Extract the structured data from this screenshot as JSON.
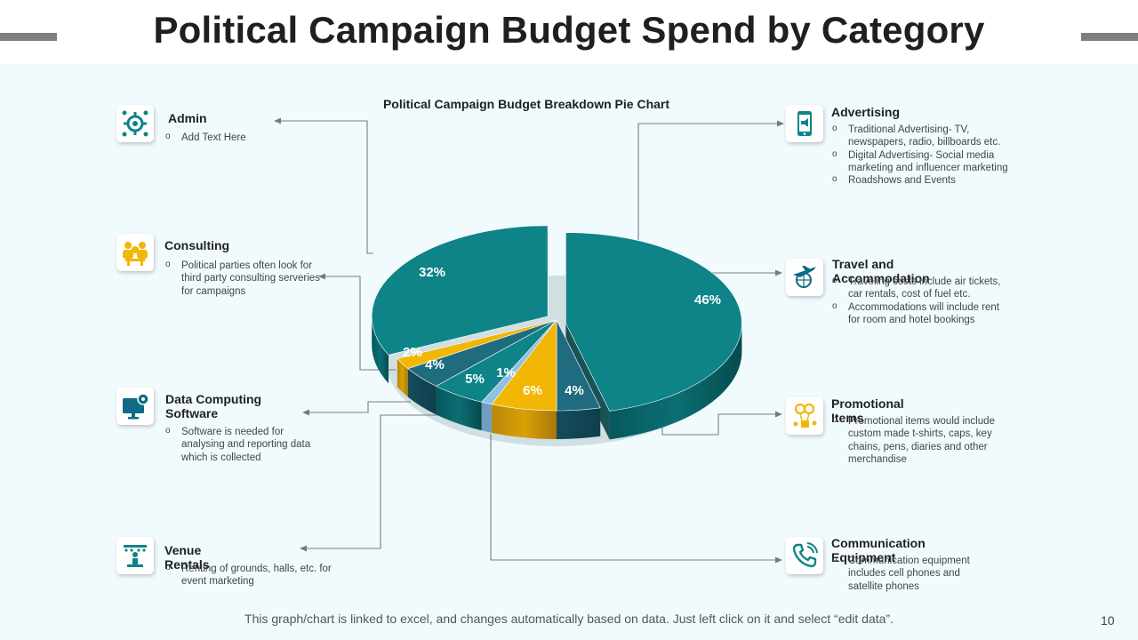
{
  "page": {
    "title": "Political Campaign Budget Spend by Category",
    "footer": "This graph/chart is linked to excel, and changes automatically based on data. Just left click on it and select “edit data”.",
    "page_number": "10"
  },
  "chart_data": {
    "type": "pie",
    "title": "Political Campaign Budget Breakdown Pie Chart",
    "slices": [
      {
        "label": "Advertising",
        "value": 46,
        "value_label": "46%"
      },
      {
        "label": "Travel and Accommodation",
        "value": 4,
        "value_label": "4%"
      },
      {
        "label": "Promotional Items",
        "value": 6,
        "value_label": "6%"
      },
      {
        "label": "Communication Equipment",
        "value": 1,
        "value_label": "1%"
      },
      {
        "label": "Venue Rentals",
        "value": 5,
        "value_label": "5%"
      },
      {
        "label": "Data Computing Software",
        "value": 4,
        "value_label": "4%"
      },
      {
        "label": "Consulting",
        "value": 2,
        "value_label": "2%"
      },
      {
        "label": "Admin",
        "value": 32,
        "value_label": "32%"
      }
    ],
    "colors": {
      "teal": "#0e8488",
      "teal_dark": "#0a6164",
      "steel": "#1f6b80",
      "amber": "#f2b705",
      "light_blue": "#8fc1e3",
      "shadow": "#cfdfe2"
    }
  },
  "categories": {
    "admin": {
      "label": "Admin",
      "bullets": [
        "Add Text Here"
      ],
      "icon": "admin-gear-icon"
    },
    "consulting": {
      "label": "Consulting",
      "bullets": [
        "Political parties often look for third party consulting serveries for campaigns"
      ],
      "icon": "consulting-people-icon"
    },
    "data": {
      "label": "Data Computing Software",
      "bullets": [
        "Software is needed for analysing and reporting data which is collected"
      ],
      "icon": "computer-gear-icon"
    },
    "venue": {
      "label": "Venue Rentals",
      "bullets": [
        "Renting of grounds, halls, etc. for event marketing"
      ],
      "icon": "podium-icon"
    },
    "advertising": {
      "label": "Advertising",
      "bullets": [
        "Traditional Advertising- TV, newspapers, radio, billboards etc.",
        "Digital Advertising- Social media marketing and influencer marketing",
        "Roadshows and Events"
      ],
      "icon": "phone-megaphone-icon"
    },
    "travel": {
      "label": "Travel and Accommodation",
      "bullets": [
        "Traveling costs include air tickets, car rentals, cost of fuel etc.",
        "Accommodations will include rent for room and hotel bookings"
      ],
      "icon": "plane-globe-icon"
    },
    "promo": {
      "label": "Promotional Items",
      "bullets": [
        "Promotional items would include custom made t-shirts, caps, key chains, pens, diaries and other merchandise"
      ],
      "icon": "balloons-gift-icon"
    },
    "comm": {
      "label": "Communication Equipment",
      "bullets": [
        "Communication equipment includes cell phones and satellite phones"
      ],
      "icon": "phone-handset-icon"
    }
  }
}
